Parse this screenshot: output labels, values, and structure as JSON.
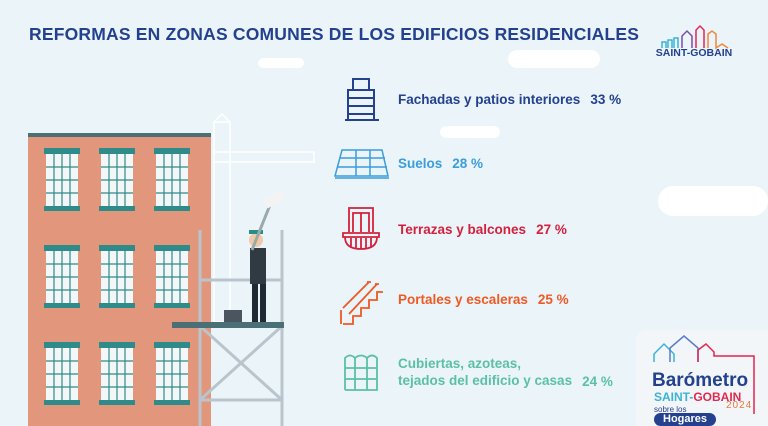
{
  "title": "REFORMAS EN ZONAS COMUNES DE LOS EDIFICIOS RESIDENCIALES",
  "brand": {
    "logo_text": "SAINT-GOBAIN"
  },
  "items": [
    {
      "label": "Fachadas y patios interiores",
      "pct": "33 %",
      "value": 33,
      "color": "#23418f",
      "icon": "building-icon"
    },
    {
      "label": "Suelos",
      "pct": "28 %",
      "value": 28,
      "color": "#3b9ddc",
      "icon": "floor-tiles-icon"
    },
    {
      "label": "Terrazas y balcones",
      "pct": "27 %",
      "value": 27,
      "color": "#d4213d",
      "icon": "balcony-icon"
    },
    {
      "label": "Portales y escaleras",
      "pct": "25 %",
      "value": 25,
      "color": "#ee5a24",
      "icon": "stairs-icon"
    },
    {
      "label_line1": "Cubiertas, azoteas,",
      "label_line2": "tejados del edificio y casas",
      "pct": "24 %",
      "value": 24,
      "color": "#5cc0a8",
      "icon": "roof-tiles-icon"
    }
  ],
  "badge": {
    "line1": "Barómetro",
    "line2a": "SAINT-",
    "line2b": "GOBAIN",
    "line3": "sobre los",
    "line4": "Hogares",
    "year": "2024"
  }
}
